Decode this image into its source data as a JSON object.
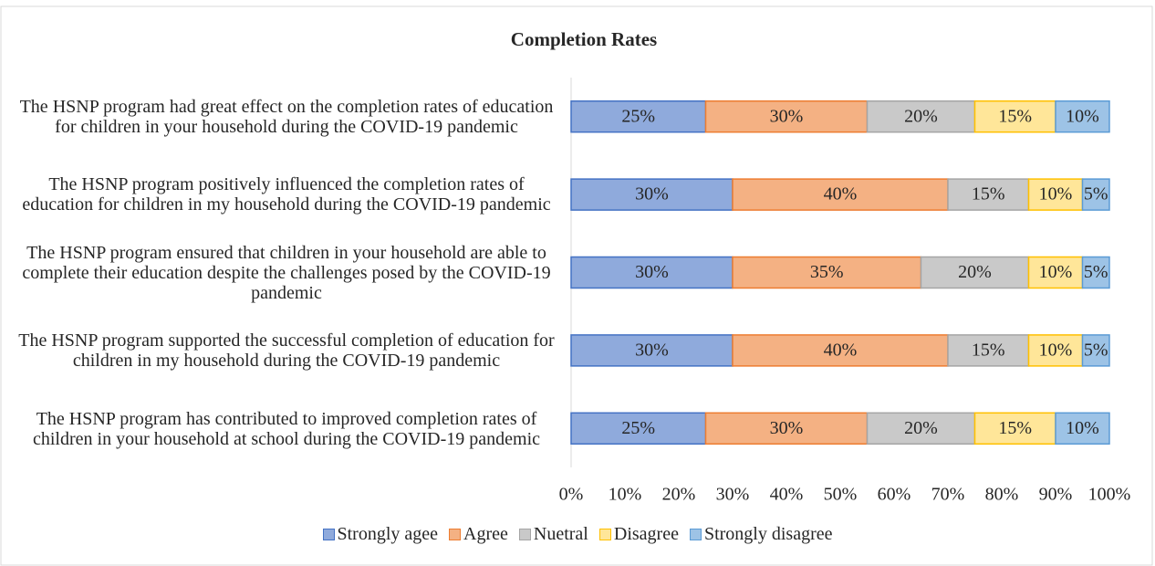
{
  "chart_data": {
    "type": "stacked-bar-horizontal",
    "title": "Completion  Rates",
    "categories": [
      "The HSNP program had great effect on the completion rates of education for children in your household during the COVID-19 pandemic",
      "The HSNP program positively influenced the completion rates of education for children in my household during the COVID-19 pandemic",
      "The HSNP program ensured that children in your household are able to complete their education despite the challenges posed by the COVID-19 pandemic",
      "The HSNP program supported the successful completion of education for children in my household during the COVID-19 pandemic",
      "The HSNP program has contributed to improved completion rates of children in your household at school during the COVID-19 pandemic"
    ],
    "series": [
      {
        "name": "Strongly agee",
        "color": "#8faadc",
        "values": [
          25,
          30,
          30,
          30,
          25
        ],
        "value_labels": [
          "25%",
          "30%",
          "30%",
          "30%",
          "25%"
        ]
      },
      {
        "name": "Agree",
        "color": "#f4b183",
        "values": [
          30,
          40,
          35,
          40,
          30
        ],
        "value_labels": [
          "30%",
          "40%",
          "35%",
          "40%",
          "30%"
        ]
      },
      {
        "name": "Nuetral",
        "color": "#c9c9c9",
        "values": [
          20,
          15,
          20,
          15,
          20
        ],
        "value_labels": [
          "20%",
          "15%",
          "20%",
          "15%",
          "20%"
        ]
      },
      {
        "name": "Disagree",
        "color": "#ffe699",
        "values": [
          15,
          10,
          10,
          10,
          15
        ],
        "value_labels": [
          "15%",
          "10%",
          "10%",
          "10%",
          "15%"
        ]
      },
      {
        "name": "Strongly disagree",
        "color": "#9dc3e6",
        "values": [
          10,
          5,
          5,
          5,
          10
        ],
        "value_labels": [
          "10%",
          "5%",
          "5%",
          "5%",
          "10%"
        ]
      }
    ],
    "xlim": [
      0,
      100
    ],
    "xticks": [
      {
        "value": 0,
        "label": "0%"
      },
      {
        "value": 10,
        "label": "10%"
      },
      {
        "value": 20,
        "label": "20%"
      },
      {
        "value": 30,
        "label": "30%"
      },
      {
        "value": 40,
        "label": "40%"
      },
      {
        "value": 50,
        "label": "50%"
      },
      {
        "value": 60,
        "label": "60%"
      },
      {
        "value": 70,
        "label": "70%"
      },
      {
        "value": 80,
        "label": "80%"
      },
      {
        "value": 90,
        "label": "90%"
      },
      {
        "value": 100,
        "label": "100%"
      }
    ],
    "grid": false,
    "legend": "bottom"
  }
}
